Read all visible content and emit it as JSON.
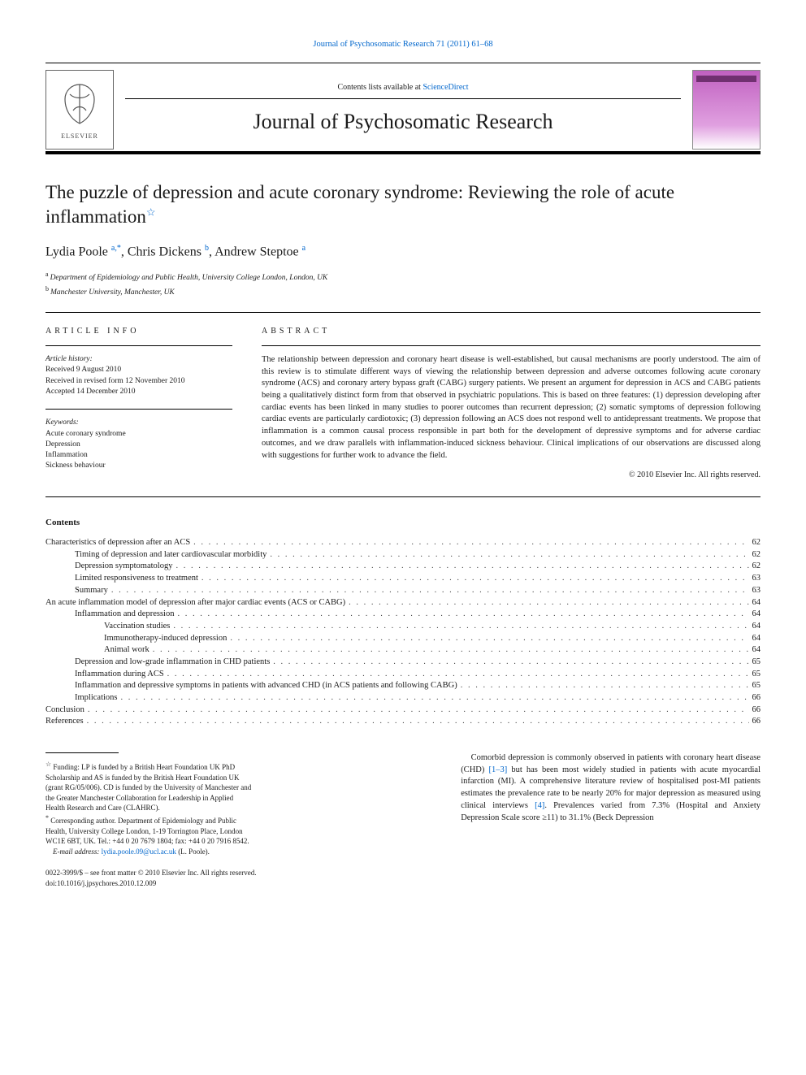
{
  "top_link": "Journal of Psychosomatic Research 71 (2011) 61–68",
  "masthead": {
    "contents_prefix": "Contents lists available at ",
    "contents_link": "ScienceDirect",
    "journal": "Journal of Psychosomatic Research",
    "publisher": "ELSEVIER"
  },
  "title": "The puzzle of depression and acute coronary syndrome: Reviewing the role of acute inflammation",
  "title_star": "☆",
  "authors": [
    {
      "name": "Lydia Poole",
      "aff": "a,",
      "mark": "*"
    },
    {
      "name": "Chris Dickens",
      "aff": "b",
      "mark": ""
    },
    {
      "name": "Andrew Steptoe",
      "aff": "a",
      "mark": ""
    }
  ],
  "affiliations": [
    {
      "key": "a",
      "text": "Department of Epidemiology and Public Health, University College London, London, UK"
    },
    {
      "key": "b",
      "text": "Manchester University, Manchester, UK"
    }
  ],
  "info": {
    "heading": "ARTICLE INFO",
    "history_label": "Article history:",
    "history": [
      "Received 9 August 2010",
      "Received in revised form 12 November 2010",
      "Accepted 14 December 2010"
    ],
    "keywords_label": "Keywords:",
    "keywords": [
      "Acute coronary syndrome",
      "Depression",
      "Inflammation",
      "Sickness behaviour"
    ]
  },
  "abstract": {
    "heading": "ABSTRACT",
    "body": "The relationship between depression and coronary heart disease is well-established, but causal mechanisms are poorly understood. The aim of this review is to stimulate different ways of viewing the relationship between depression and adverse outcomes following acute coronary syndrome (ACS) and coronary artery bypass graft (CABG) surgery patients. We present an argument for depression in ACS and CABG patients being a qualitatively distinct form from that observed in psychiatric populations. This is based on three features: (1) depression developing after cardiac events has been linked in many studies to poorer outcomes than recurrent depression; (2) somatic symptoms of depression following cardiac events are particularly cardiotoxic; (3) depression following an ACS does not respond well to antidepressant treatments. We propose that inflammation is a common causal process responsible in part both for the development of depressive symptoms and for adverse cardiac outcomes, and we draw parallels with inflammation-induced sickness behaviour. Clinical implications of our observations are discussed along with suggestions for further work to advance the field.",
    "copyright": "© 2010 Elsevier Inc. All rights reserved."
  },
  "contents_heading": "Contents",
  "toc": [
    {
      "label": "Characteristics of depression after an ACS",
      "page": "62",
      "indent": 0
    },
    {
      "label": "Timing of depression and later cardiovascular morbidity",
      "page": "62",
      "indent": 1
    },
    {
      "label": "Depression symptomatology",
      "page": "62",
      "indent": 1
    },
    {
      "label": "Limited responsiveness to treatment",
      "page": "63",
      "indent": 1
    },
    {
      "label": "Summary",
      "page": "63",
      "indent": 1
    },
    {
      "label": "An acute inflammation model of depression after major cardiac events (ACS or CABG)",
      "page": "64",
      "indent": 0
    },
    {
      "label": "Inflammation and depression",
      "page": "64",
      "indent": 1
    },
    {
      "label": "Vaccination studies",
      "page": "64",
      "indent": 2
    },
    {
      "label": "Immunotherapy-induced depression",
      "page": "64",
      "indent": 2
    },
    {
      "label": "Animal work",
      "page": "64",
      "indent": 2
    },
    {
      "label": "Depression and low-grade inflammation in CHD patients",
      "page": "65",
      "indent": 1
    },
    {
      "label": "Inflammation during ACS",
      "page": "65",
      "indent": 1
    },
    {
      "label": "Inflammation and depressive symptoms in patients with advanced CHD (in ACS patients and following CABG)",
      "page": "65",
      "indent": 1
    },
    {
      "label": "Implications",
      "page": "66",
      "indent": 1
    },
    {
      "label": "Conclusion",
      "page": "66",
      "indent": 0
    },
    {
      "label": "References",
      "page": "66",
      "indent": 0
    }
  ],
  "footnotes": {
    "funding_mark": "☆",
    "funding": "Funding: LP is funded by a British Heart Foundation UK PhD Scholarship and AS is funded by the British Heart Foundation UK (grant RG/05/006). CD is funded by the University of Manchester and the Greater Manchester Collaboration for Leadership in Applied Health Research and Care (CLAHRC).",
    "corr_mark": "*",
    "corr": "Corresponding author. Department of Epidemiology and Public Health, University College London, 1-19 Torrington Place, London WC1E 6BT, UK. Tel.: +44 0 20 7679 1804; fax: +44 0 20 7916 8542.",
    "email_label": "E-mail address:",
    "email": "lydia.poole.09@ucl.ac.uk",
    "email_who": "(L. Poole)."
  },
  "intro": {
    "p1_a": "Comorbid depression is commonly observed in patients with coronary heart disease (CHD) ",
    "p1_ref1": "[1–3]",
    "p1_b": " but has been most widely studied in patients with acute myocardial infarction (MI). A comprehensive literature review of hospitalised post-MI patients estimates the prevalence rate to be nearly 20% for major depression as measured using clinical interviews ",
    "p1_ref2": "[4]",
    "p1_c": ". Prevalences varied from 7.3% (Hospital and Anxiety Depression Scale score ≥11) to 31.1% (Beck Depression"
  },
  "biblio": {
    "front": "0022-3999/$ – see front matter © 2010 Elsevier Inc. All rights reserved.",
    "doi": "doi:10.1016/j.jpsychores.2010.12.009"
  },
  "colors": {
    "link": "#0066cc",
    "text": "#1a1a1a",
    "rule": "#000000",
    "cover_grad_start": "#c060c0",
    "cover_grad_mid": "#e0a0e0",
    "cover_bar": "#703070"
  },
  "fonts": {
    "body_pt": 10.5,
    "title_pt": 23,
    "authors_pt": 16,
    "journal_pt": 26,
    "footnote_pt": 9
  }
}
